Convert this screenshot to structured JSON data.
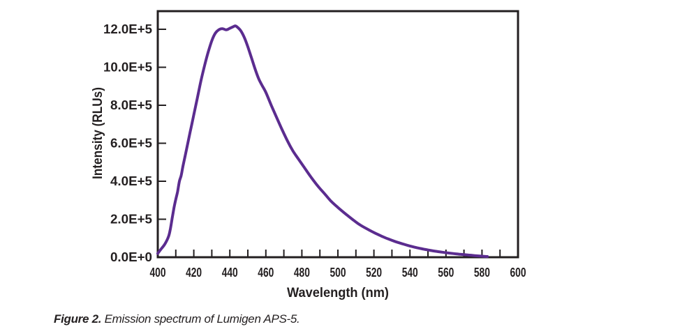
{
  "figure": {
    "caption": {
      "label": "Figure 2.",
      "text": " Emission spectrum of Lumigen APS-5."
    }
  },
  "chart_data": {
    "type": "line",
    "title": "",
    "xlabel": "Wavelength (nm)",
    "ylabel": "Intensity (RLUs)",
    "xlim": [
      400,
      600
    ],
    "ylim": [
      0,
      1200000
    ],
    "grid": false,
    "legend": false,
    "x_ticks": [
      {
        "value": 400,
        "label": "400"
      },
      {
        "value": 420,
        "label": "420"
      },
      {
        "value": 440,
        "label": "440"
      },
      {
        "value": 460,
        "label": "460"
      },
      {
        "value": 480,
        "label": "480"
      },
      {
        "value": 500,
        "label": "500"
      },
      {
        "value": 520,
        "label": "520"
      },
      {
        "value": 540,
        "label": "540"
      },
      {
        "value": 560,
        "label": "560"
      },
      {
        "value": 580,
        "label": "580"
      },
      {
        "value": 600,
        "label": "600"
      }
    ],
    "x_minor_tick_step": 10,
    "y_ticks": [
      {
        "value": 0,
        "label": "0.0E+0"
      },
      {
        "value": 200000,
        "label": "2.0E+5"
      },
      {
        "value": 400000,
        "label": "4.0E+5"
      },
      {
        "value": 600000,
        "label": "6.0E+5"
      },
      {
        "value": 800000,
        "label": "8.0E+5"
      },
      {
        "value": 1000000,
        "label": "10.0E+5"
      },
      {
        "value": 1200000,
        "label": "12.0E+5"
      }
    ],
    "colors": {
      "line": "#5b2c8f",
      "axis": "#231f20",
      "background": "#ffffff"
    },
    "series": [
      {
        "name": "Lumigen APS-5 emission",
        "peak_wavelength_nm": 443,
        "peak_intensity_rlu": 1218000,
        "points": [
          [
            400,
            20000
          ],
          [
            402,
            45000
          ],
          [
            404,
            70000
          ],
          [
            406,
            110000
          ],
          [
            407,
            150000
          ],
          [
            408,
            205000
          ],
          [
            409,
            260000
          ],
          [
            410,
            305000
          ],
          [
            411,
            345000
          ],
          [
            412,
            400000
          ],
          [
            413,
            430000
          ],
          [
            414,
            480000
          ],
          [
            416,
            570000
          ],
          [
            418,
            660000
          ],
          [
            420,
            750000
          ],
          [
            422,
            840000
          ],
          [
            424,
            930000
          ],
          [
            426,
            1010000
          ],
          [
            428,
            1080000
          ],
          [
            430,
            1140000
          ],
          [
            432,
            1180000
          ],
          [
            434,
            1198000
          ],
          [
            436,
            1203000
          ],
          [
            438,
            1197000
          ],
          [
            440,
            1205000
          ],
          [
            442,
            1214000
          ],
          [
            443,
            1218000
          ],
          [
            444,
            1213000
          ],
          [
            446,
            1193000
          ],
          [
            448,
            1158000
          ],
          [
            450,
            1108000
          ],
          [
            452,
            1050000
          ],
          [
            454,
            992000
          ],
          [
            456,
            940000
          ],
          [
            458,
            903000
          ],
          [
            460,
            868000
          ],
          [
            463,
            800000
          ],
          [
            466,
            735000
          ],
          [
            469,
            672000
          ],
          [
            472,
            612000
          ],
          [
            475,
            560000
          ],
          [
            478,
            518000
          ],
          [
            481,
            477000
          ],
          [
            484,
            436000
          ],
          [
            487,
            397000
          ],
          [
            490,
            362000
          ],
          [
            493,
            330000
          ],
          [
            496,
            297000
          ],
          [
            500,
            262000
          ],
          [
            504,
            230000
          ],
          [
            508,
            200000
          ],
          [
            512,
            172000
          ],
          [
            516,
            150000
          ],
          [
            520,
            130000
          ],
          [
            524,
            112000
          ],
          [
            528,
            96000
          ],
          [
            532,
            82000
          ],
          [
            536,
            70000
          ],
          [
            540,
            59000
          ],
          [
            544,
            50000
          ],
          [
            548,
            42000
          ],
          [
            552,
            35000
          ],
          [
            556,
            29000
          ],
          [
            560,
            24000
          ],
          [
            564,
            19500
          ],
          [
            568,
            15500
          ],
          [
            572,
            12000
          ],
          [
            576,
            8500
          ],
          [
            580,
            5500
          ],
          [
            583,
            3500
          ]
        ]
      }
    ]
  }
}
